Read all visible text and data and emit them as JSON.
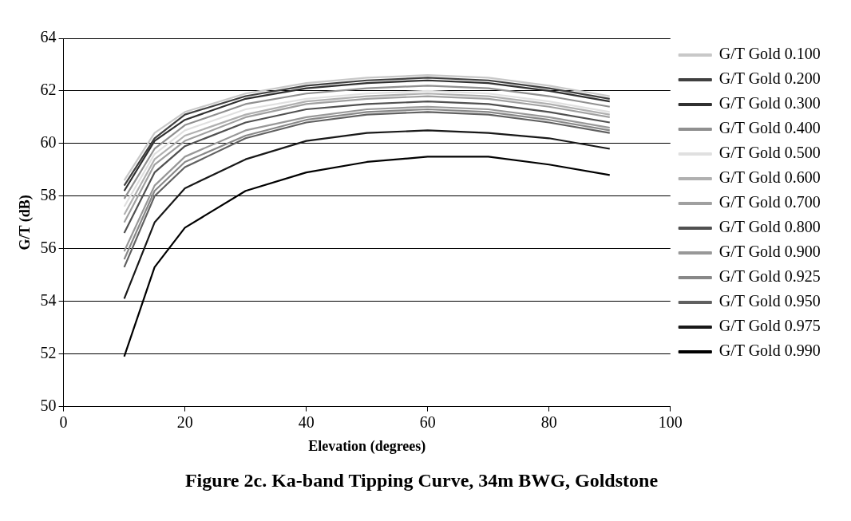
{
  "chart_data": {
    "type": "line",
    "title": "Figure 2c. Ka-band Tipping Curve, 34m BWG, Goldstone",
    "xlabel": "Elevation (degrees)",
    "ylabel": "G/T (dB)",
    "x": [
      10,
      15,
      20,
      30,
      40,
      50,
      60,
      70,
      80,
      90
    ],
    "xlim": [
      0,
      100
    ],
    "xticks": [
      0,
      20,
      40,
      60,
      80,
      100
    ],
    "ylim": [
      50,
      64
    ],
    "yticks": [
      50,
      52,
      54,
      56,
      58,
      60,
      62,
      64
    ],
    "grid": "y",
    "legend": "right",
    "marker": "none",
    "line_style": "solid",
    "series": [
      {
        "name": "G/T Gold 0.100",
        "color": "#c8c8c8",
        "values": [
          58.6,
          60.4,
          61.2,
          61.9,
          62.3,
          62.5,
          62.6,
          62.5,
          62.2,
          61.8
        ]
      },
      {
        "name": "G/T Gold 0.200",
        "color": "#404040",
        "values": [
          58.4,
          60.2,
          61.1,
          61.8,
          62.2,
          62.4,
          62.5,
          62.4,
          62.1,
          61.7
        ]
      },
      {
        "name": "G/T Gold 0.300",
        "color": "#303030",
        "values": [
          58.2,
          60.1,
          60.9,
          61.7,
          62.1,
          62.3,
          62.4,
          62.3,
          62.0,
          61.6
        ]
      },
      {
        "name": "G/T Gold 0.400",
        "color": "#909090",
        "values": [
          57.9,
          59.8,
          60.7,
          61.5,
          61.9,
          62.1,
          62.2,
          62.1,
          61.8,
          61.4
        ]
      },
      {
        "name": "G/T Gold 0.500",
        "color": "#e0e0e0",
        "values": [
          57.6,
          59.6,
          60.5,
          61.3,
          61.7,
          61.9,
          62.0,
          61.9,
          61.6,
          61.2
        ]
      },
      {
        "name": "G/T Gold 0.600",
        "color": "#b0b0b0",
        "values": [
          57.3,
          59.4,
          60.3,
          61.1,
          61.6,
          61.8,
          61.9,
          61.8,
          61.5,
          61.1
        ]
      },
      {
        "name": "G/T Gold 0.700",
        "color": "#a0a0a0",
        "values": [
          57.0,
          59.2,
          60.1,
          61.0,
          61.5,
          61.7,
          61.8,
          61.7,
          61.4,
          61.0
        ]
      },
      {
        "name": "G/T Gold 0.800",
        "color": "#505050",
        "values": [
          56.6,
          58.9,
          59.9,
          60.8,
          61.3,
          61.5,
          61.6,
          61.5,
          61.2,
          60.8
        ]
      },
      {
        "name": "G/T Gold 0.900",
        "color": "#989898",
        "values": [
          55.9,
          58.4,
          59.5,
          60.5,
          61.0,
          61.3,
          61.4,
          61.3,
          61.0,
          60.6
        ]
      },
      {
        "name": "G/T Gold 0.925",
        "color": "#888888",
        "values": [
          55.6,
          58.2,
          59.3,
          60.3,
          60.9,
          61.2,
          61.3,
          61.2,
          60.9,
          60.5
        ]
      },
      {
        "name": "G/T Gold 0.950",
        "color": "#606060",
        "values": [
          55.3,
          58.0,
          59.1,
          60.2,
          60.8,
          61.1,
          61.2,
          61.1,
          60.8,
          60.4
        ]
      },
      {
        "name": "G/T Gold 0.975",
        "color": "#181818",
        "values": [
          54.1,
          57.0,
          58.3,
          59.4,
          60.1,
          60.4,
          60.5,
          60.4,
          60.2,
          59.8
        ]
      },
      {
        "name": "G/T Gold 0.990",
        "color": "#000000",
        "values": [
          51.9,
          55.3,
          56.8,
          58.2,
          58.9,
          59.3,
          59.5,
          59.5,
          59.2,
          58.8
        ]
      }
    ]
  }
}
